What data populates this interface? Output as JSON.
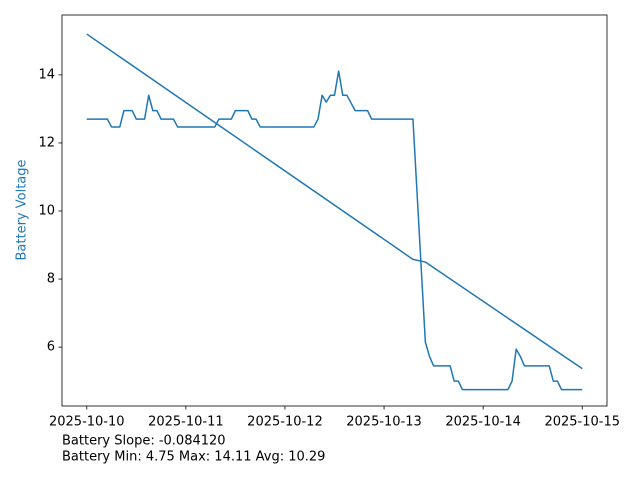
{
  "chart_data": {
    "type": "line",
    "ylabel": "Battery Voltage",
    "ylabel_color": "#1f77b4",
    "annotations": [
      "Battery Slope: -0.084120",
      "Battery Min: 4.75 Max: 14.11 Avg: 10.29"
    ],
    "xlim": [
      "2025-10-09T18:00",
      "2025-10-15T06:00"
    ],
    "xticks": [
      {
        "value": "2025-10-10T00:00",
        "label": "2025-10-10"
      },
      {
        "value": "2025-10-11T00:00",
        "label": "2025-10-11"
      },
      {
        "value": "2025-10-12T00:00",
        "label": "2025-10-12"
      },
      {
        "value": "2025-10-13T00:00",
        "label": "2025-10-13"
      },
      {
        "value": "2025-10-14T00:00",
        "label": "2025-10-14"
      },
      {
        "value": "2025-10-15T00:00",
        "label": "2025-10-15"
      }
    ],
    "ylim": [
      4.27,
      15.76
    ],
    "yticks": [
      6,
      8,
      10,
      12,
      14
    ],
    "grid": false,
    "series": [
      {
        "color": "#1f77b4",
        "x": [
          "2025-10-10T00:00",
          "2025-10-10T05:00",
          "2025-10-10T06:00",
          "2025-10-10T08:00",
          "2025-10-10T09:00",
          "2025-10-10T11:00",
          "2025-10-10T12:00",
          "2025-10-10T14:00",
          "2025-10-10T15:00",
          "2025-10-10T16:00",
          "2025-10-10T17:00",
          "2025-10-10T18:00",
          "2025-10-10T21:00",
          "2025-10-10T22:00",
          "2025-10-11T07:00",
          "2025-10-11T08:00",
          "2025-10-11T11:00",
          "2025-10-11T12:00",
          "2025-10-11T15:00",
          "2025-10-11T16:00",
          "2025-10-11T17:00",
          "2025-10-11T18:00",
          "2025-10-12T07:00",
          "2025-10-12T08:00",
          "2025-10-12T09:00",
          "2025-10-12T10:00",
          "2025-10-12T11:00",
          "2025-10-12T12:00",
          "2025-10-12T13:00",
          "2025-10-12T14:00",
          "2025-10-12T15:00",
          "2025-10-12T17:00",
          "2025-10-12T20:00",
          "2025-10-12T21:00",
          "2025-10-13T07:00",
          "2025-10-13T10:00",
          "2025-10-13T11:00",
          "2025-10-13T12:00",
          "2025-10-13T16:00",
          "2025-10-13T17:00",
          "2025-10-13T18:00",
          "2025-10-13T19:00",
          "2025-10-14T06:00",
          "2025-10-14T07:00",
          "2025-10-14T08:00",
          "2025-10-14T09:00",
          "2025-10-14T10:00",
          "2025-10-14T16:00",
          "2025-10-14T17:00",
          "2025-10-14T18:00",
          "2025-10-14T19:00",
          "2025-10-15T00:00"
        ],
        "values": [
          12.7,
          12.7,
          12.47,
          12.47,
          12.95,
          12.95,
          12.7,
          12.7,
          13.4,
          12.95,
          12.95,
          12.7,
          12.7,
          12.47,
          12.47,
          12.7,
          12.7,
          12.95,
          12.95,
          12.7,
          12.7,
          12.47,
          12.47,
          12.7,
          13.4,
          13.2,
          13.4,
          13.4,
          14.11,
          13.4,
          13.4,
          12.95,
          12.95,
          12.7,
          12.7,
          6.15,
          5.73,
          5.45,
          5.45,
          5.0,
          5.0,
          4.75,
          4.75,
          5.0,
          5.94,
          5.73,
          5.45,
          5.45,
          5.0,
          5.0,
          4.75,
          4.75
        ]
      },
      {
        "color": "#1f77b4",
        "x": [
          "2025-10-10T00:00",
          "2025-10-13T07:00",
          "2025-10-13T10:00",
          "2025-10-15T00:00"
        ],
        "values": [
          15.2,
          8.58,
          8.5,
          5.37
        ]
      }
    ]
  }
}
